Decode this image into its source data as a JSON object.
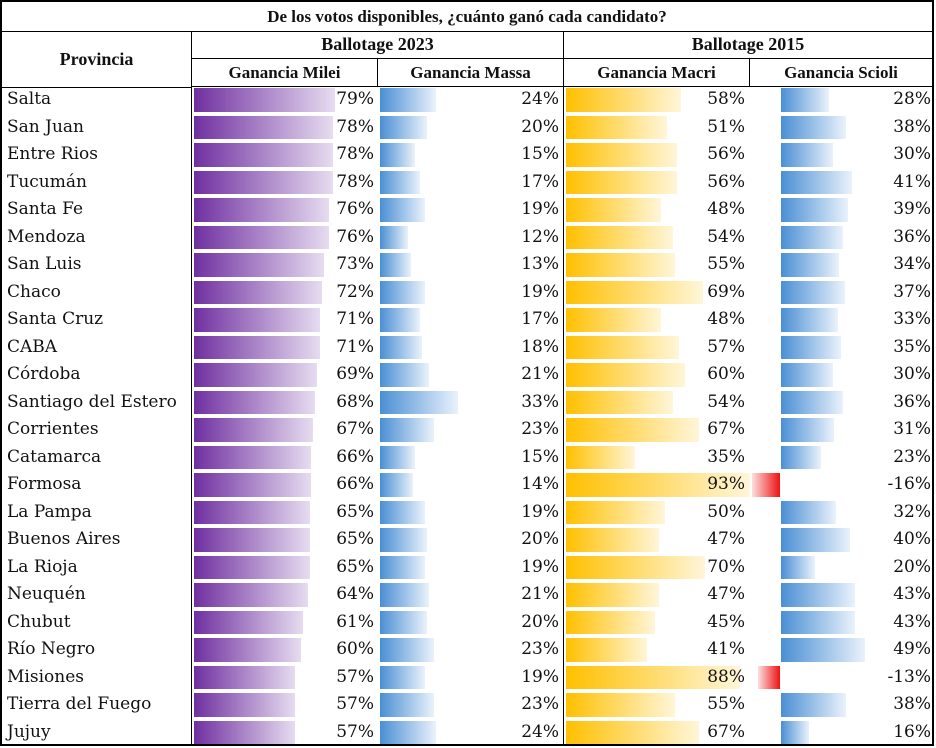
{
  "chart_data": {
    "type": "table",
    "title": "De los votos disponibles, ¿cuánto ganó cada candidato?",
    "row_header": "Provincia",
    "groups": [
      {
        "label": "Ballotage 2023",
        "columns": [
          "Ganancia Milei",
          "Ganancia Massa"
        ]
      },
      {
        "label": "Ballotage 2015",
        "columns": [
          "Ganancia Macri",
          "Ganancia Scioli"
        ]
      }
    ],
    "columns": [
      {
        "key": "milei",
        "label": "Ganancia Milei",
        "color": "#7030a0",
        "fade": "#e6dcf0"
      },
      {
        "key": "massa",
        "label": "Ganancia Massa",
        "color": "#4a8fd4",
        "fade": "#eaf2fb"
      },
      {
        "key": "macri",
        "label": "Ganancia Macri",
        "color": "#ffc000",
        "fade": "#fff6d9"
      },
      {
        "key": "scioli",
        "label": "Ganancia Scioli",
        "color": "#4a8fd4",
        "fade": "#eaf2fb"
      }
    ],
    "negative_color": "#ee1111",
    "unit": "%",
    "rows": [
      {
        "provincia": "Salta",
        "milei": 79,
        "massa": 24,
        "macri": 58,
        "scioli": 28
      },
      {
        "provincia": "San Juan",
        "milei": 78,
        "massa": 20,
        "macri": 51,
        "scioli": 38
      },
      {
        "provincia": "Entre Rios",
        "milei": 78,
        "massa": 15,
        "macri": 56,
        "scioli": 30
      },
      {
        "provincia": "Tucumán",
        "milei": 78,
        "massa": 17,
        "macri": 56,
        "scioli": 41
      },
      {
        "provincia": "Santa Fe",
        "milei": 76,
        "massa": 19,
        "macri": 48,
        "scioli": 39
      },
      {
        "provincia": "Mendoza",
        "milei": 76,
        "massa": 12,
        "macri": 54,
        "scioli": 36
      },
      {
        "provincia": "San Luis",
        "milei": 73,
        "massa": 13,
        "macri": 55,
        "scioli": 34
      },
      {
        "provincia": "Chaco",
        "milei": 72,
        "massa": 19,
        "macri": 69,
        "scioli": 37
      },
      {
        "provincia": "Santa Cruz",
        "milei": 71,
        "massa": 17,
        "macri": 48,
        "scioli": 33
      },
      {
        "provincia": "CABA",
        "milei": 71,
        "massa": 18,
        "macri": 57,
        "scioli": 35
      },
      {
        "provincia": "Córdoba",
        "milei": 69,
        "massa": 21,
        "macri": 60,
        "scioli": 30
      },
      {
        "provincia": "Santiago del Estero",
        "milei": 68,
        "massa": 33,
        "macri": 54,
        "scioli": 36
      },
      {
        "provincia": "Corrientes",
        "milei": 67,
        "massa": 23,
        "macri": 67,
        "scioli": 31
      },
      {
        "provincia": "Catamarca",
        "milei": 66,
        "massa": 15,
        "macri": 35,
        "scioli": 23
      },
      {
        "provincia": "Formosa",
        "milei": 66,
        "massa": 14,
        "macri": 93,
        "scioli": -16
      },
      {
        "provincia": "La Pampa",
        "milei": 65,
        "massa": 19,
        "macri": 50,
        "scioli": 32
      },
      {
        "provincia": "Buenos Aires",
        "milei": 65,
        "massa": 20,
        "macri": 47,
        "scioli": 40
      },
      {
        "provincia": "La Rioja",
        "milei": 65,
        "massa": 19,
        "macri": 70,
        "scioli": 20
      },
      {
        "provincia": "Neuquén",
        "milei": 64,
        "massa": 21,
        "macri": 47,
        "scioli": 43
      },
      {
        "provincia": "Chubut",
        "milei": 61,
        "massa": 20,
        "macri": 45,
        "scioli": 43
      },
      {
        "provincia": "Río Negro",
        "milei": 60,
        "massa": 23,
        "macri": 41,
        "scioli": 49
      },
      {
        "provincia": "Misiones",
        "milei": 57,
        "massa": 19,
        "macri": 88,
        "scioli": -13
      },
      {
        "provincia": "Tierra del Fuego",
        "milei": 57,
        "massa": 23,
        "macri": 55,
        "scioli": 38
      },
      {
        "provincia": "Jujuy",
        "milei": 57,
        "massa": 24,
        "macri": 67,
        "scioli": 16
      }
    ]
  }
}
